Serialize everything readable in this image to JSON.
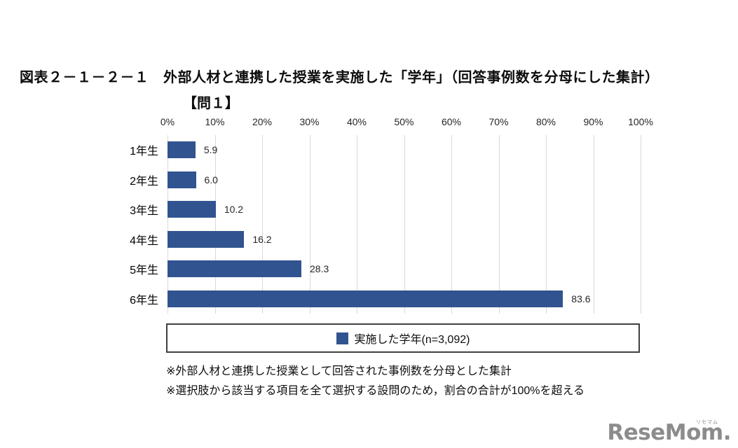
{
  "title": "図表２－１－２－１　外部人材と連携した授業を実施した「学年」（回答事例数を分母にした集計）",
  "subtitle": "【問１】",
  "chart_data": {
    "type": "bar",
    "orientation": "horizontal",
    "title": "外部人材と連携した授業を実施した「学年」（回答事例数を分母にした集計）",
    "question_label": "【問１】",
    "categories": [
      "1年生",
      "2年生",
      "3年生",
      "4年生",
      "5年生",
      "6年生"
    ],
    "values": [
      5.9,
      6.0,
      10.2,
      16.2,
      28.3,
      83.6
    ],
    "value_labels": [
      "5.9",
      "6.0",
      "10.2",
      "16.2",
      "28.3",
      "83.6"
    ],
    "x_ticks": [
      "0%",
      "10%",
      "20%",
      "30%",
      "40%",
      "50%",
      "60%",
      "70%",
      "80%",
      "90%",
      "100%"
    ],
    "xlim": [
      0,
      100
    ],
    "grid": "vertical-only",
    "gridline_color": "#d9d9d9",
    "bar_color": "#31538F",
    "legend": {
      "label": "実施した学年(n=3,092)",
      "position": "bottom-boxed"
    }
  },
  "footnotes": [
    "※外部人材と連携した授業として回答された事例数を分母とした集計",
    "※選択肢から該当する項目を全て選択する設問のため，割合の合計が100%を超える"
  ],
  "logo": {
    "text": "ReseMom",
    "suffix": ".",
    "kana": "リセマム"
  }
}
